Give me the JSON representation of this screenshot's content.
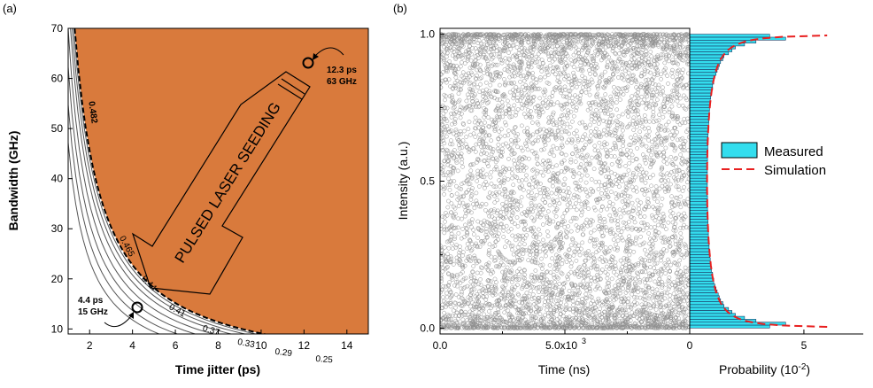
{
  "chart_data": [
    {
      "panel_label": "(a)",
      "type": "contour",
      "xlabel": "Time jitter (ps)",
      "ylabel": "Bandwidth (GHz)",
      "xlim": [
        1,
        15
      ],
      "ylim": [
        9,
        70
      ],
      "xticks": [
        "2",
        "4",
        "6",
        "8",
        "10",
        "12",
        "14"
      ],
      "xtick_values": [
        2,
        4,
        6,
        8,
        10,
        12,
        14
      ],
      "yticks": [
        "10",
        "20",
        "30",
        "40",
        "50",
        "60",
        "70"
      ],
      "ytick_values": [
        10,
        20,
        30,
        40,
        50,
        60,
        70
      ],
      "contours": [
        {
          "label": "0.482",
          "level": 0.482,
          "dashed": true
        },
        {
          "label": "0.465",
          "level": 0.465
        },
        {
          "label": "0.44",
          "level": 0.44
        },
        {
          "label": "0.41",
          "level": 0.41
        },
        {
          "label": "0.37",
          "level": 0.37
        },
        {
          "label": "0.33",
          "level": 0.33
        },
        {
          "label": "0.29",
          "level": 0.29
        },
        {
          "label": "0.25",
          "level": 0.25
        }
      ],
      "region_colors": [
        "#e0e4f4",
        "#b8c2ea",
        "#a2acce",
        "#bab9a6",
        "#cfc283",
        "#ddc069",
        "#e3a84f",
        "#d97a3c"
      ],
      "annotations": [
        {
          "lines": [
            "12.3 ps",
            "63 GHz"
          ],
          "x": 12.3,
          "y": 63
        },
        {
          "lines": [
            "4.4 ps",
            "15 GHz"
          ],
          "x": 4.4,
          "y": 15
        }
      ],
      "arrow_text": "PULSED LASER SEEDING"
    },
    {
      "panel_label": "(b)",
      "type": "scatter",
      "xlabel": "Time (ns)",
      "ylabel": "Intensity (a.u.)",
      "xlim": [
        0,
        10000
      ],
      "ylim": [
        -0.02,
        1.02
      ],
      "xticks": [
        "0.0",
        "5.0x10",
        "0"
      ],
      "xtick_values": [
        0,
        5000
      ],
      "xtick_sup": "3",
      "yticks": [
        "0.0",
        "0.5",
        "1.0"
      ],
      "ytick_values": [
        0,
        0.5,
        1.0
      ],
      "distribution": "arcsine",
      "point_count": 6000
    },
    {
      "type": "bar",
      "orientation": "horizontal",
      "xlabel": "Probability (10",
      "xlabel_sup": "-2",
      "xlabel_tail": ")",
      "xticks": [
        "5"
      ],
      "xtick_values": [
        5
      ],
      "xlim": [
        0,
        7.6
      ],
      "ylim": [
        -0.02,
        1.02
      ],
      "bin_width": 0.01,
      "y": [
        0.005,
        0.015,
        0.025,
        0.035,
        0.045,
        0.055,
        0.065,
        0.075,
        0.085,
        0.095,
        0.105,
        0.115,
        0.125,
        0.135,
        0.145,
        0.155,
        0.165,
        0.175,
        0.185,
        0.195,
        0.205,
        0.215,
        0.225,
        0.235,
        0.245,
        0.255,
        0.265,
        0.275,
        0.285,
        0.295,
        0.305,
        0.315,
        0.325,
        0.335,
        0.345,
        0.355,
        0.365,
        0.375,
        0.385,
        0.395,
        0.405,
        0.415,
        0.425,
        0.435,
        0.445,
        0.455,
        0.465,
        0.475,
        0.485,
        0.495,
        0.505,
        0.515,
        0.525,
        0.535,
        0.545,
        0.555,
        0.565,
        0.575,
        0.585,
        0.595,
        0.605,
        0.615,
        0.625,
        0.635,
        0.645,
        0.655,
        0.665,
        0.675,
        0.685,
        0.695,
        0.705,
        0.715,
        0.725,
        0.735,
        0.745,
        0.755,
        0.765,
        0.775,
        0.785,
        0.795,
        0.805,
        0.815,
        0.825,
        0.835,
        0.845,
        0.855,
        0.865,
        0.875,
        0.885,
        0.895,
        0.905,
        0.915,
        0.925,
        0.935,
        0.945,
        0.955,
        0.965,
        0.975,
        0.985,
        0.995
      ],
      "values": [
        3.5,
        4.2,
        2.9,
        2.4,
        2.0,
        1.85,
        1.7,
        1.5,
        1.45,
        1.35,
        1.3,
        1.25,
        1.2,
        1.15,
        1.1,
        1.05,
        1.05,
        1.0,
        1.0,
        0.95,
        0.95,
        0.92,
        0.9,
        0.9,
        0.88,
        0.87,
        0.86,
        0.85,
        0.85,
        0.84,
        0.83,
        0.82,
        0.82,
        0.81,
        0.8,
        0.8,
        0.8,
        0.79,
        0.79,
        0.79,
        0.78,
        0.78,
        0.78,
        0.78,
        0.78,
        0.77,
        0.77,
        0.77,
        0.77,
        0.77,
        0.77,
        0.77,
        0.77,
        0.77,
        0.77,
        0.78,
        0.78,
        0.78,
        0.78,
        0.78,
        0.79,
        0.79,
        0.79,
        0.8,
        0.8,
        0.8,
        0.81,
        0.82,
        0.82,
        0.83,
        0.84,
        0.85,
        0.85,
        0.86,
        0.87,
        0.88,
        0.9,
        0.9,
        0.92,
        0.95,
        0.95,
        1.0,
        1.0,
        1.05,
        1.05,
        1.1,
        1.15,
        1.2,
        1.25,
        1.3,
        1.35,
        1.45,
        1.5,
        1.7,
        1.85,
        2.0,
        2.4,
        2.9,
        4.2,
        3.5
      ],
      "series": [
        {
          "name": "Measured",
          "style": "bars",
          "color": "#33ddee"
        },
        {
          "name": "Simulation",
          "style": "dashed",
          "color": "#e82020"
        }
      ]
    }
  ]
}
